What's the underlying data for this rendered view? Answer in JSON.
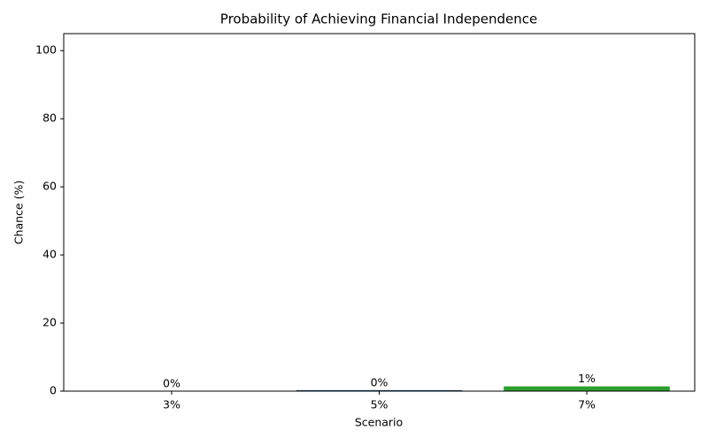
{
  "chart_data": {
    "type": "bar",
    "title": "Probability of Achieving Financial Independence",
    "x_label": "Scenario",
    "y_label": "Chance (%)",
    "categories": [
      "3%",
      "5%",
      "7%"
    ],
    "values": [
      0,
      0.3,
      1.4
    ],
    "value_labels": [
      "0%",
      "0%",
      "1%"
    ],
    "colors": [
      "#1f77b4",
      "#1f4e79",
      "#2ca02c"
    ],
    "ylim": [
      0,
      105
    ],
    "yticks": [
      0,
      20,
      40,
      60,
      80,
      100
    ],
    "grid": false
  }
}
